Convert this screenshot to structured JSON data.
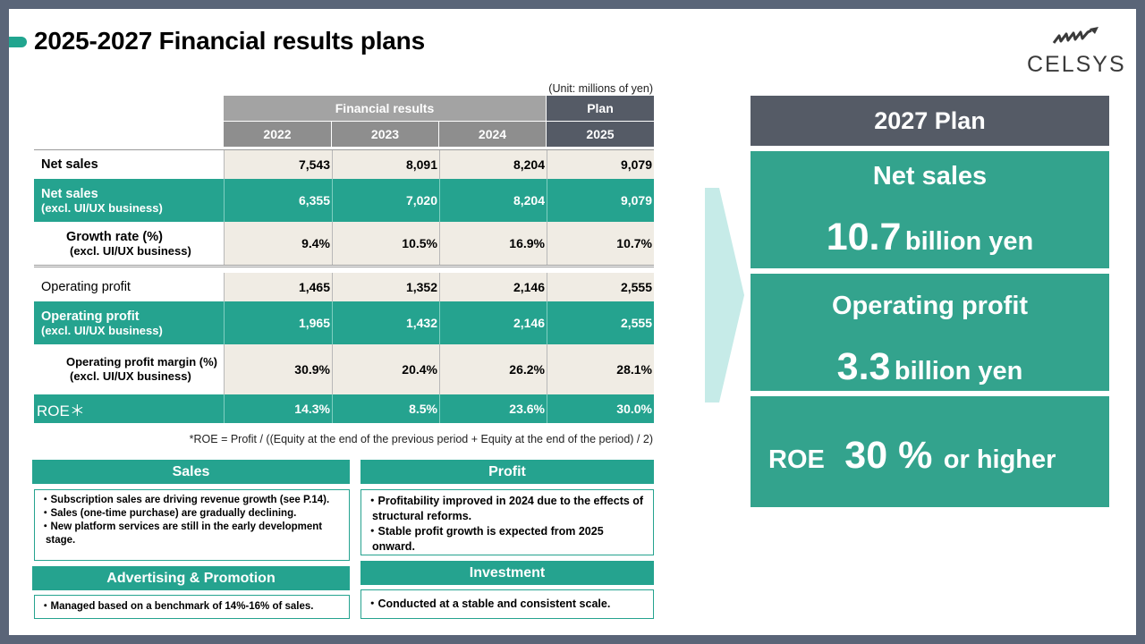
{
  "title": "2025-2027 Financial results plans",
  "logo_text": "CELSYS",
  "unit": "(Unit: millions of yen)",
  "table": {
    "group_results": "Financial results",
    "group_plan": "Plan",
    "years": [
      "2022",
      "2023",
      "2024",
      "2025"
    ],
    "rows": [
      {
        "label": "Net sales",
        "sub": "",
        "values": [
          "7,543",
          "8,091",
          "8,204",
          "9,079"
        ]
      },
      {
        "label": "Net sales",
        "sub": "(excl. UI/UX business)",
        "values": [
          "6,355",
          "7,020",
          "8,204",
          "9,079"
        ]
      },
      {
        "label": "Growth rate (%)",
        "sub": "(excl. UI/UX business)",
        "values": [
          "9.4%",
          "10.5%",
          "16.9%",
          "10.7%"
        ]
      },
      {
        "label": "Operating profit",
        "sub": "",
        "values": [
          "1,465",
          "1,352",
          "2,146",
          "2,555"
        ]
      },
      {
        "label": "Operating profit",
        "sub": "(excl. UI/UX business)",
        "values": [
          "1,965",
          "1,432",
          "2,146",
          "2,555"
        ]
      },
      {
        "label": "Operating profit margin (%)",
        "sub": "(excl. UI/UX business)",
        "values": [
          "30.9%",
          "20.4%",
          "26.2%",
          "28.1%"
        ]
      },
      {
        "label": "ROE＊",
        "sub": "",
        "values": [
          "14.3%",
          "8.5%",
          "23.6%",
          "30.0%"
        ]
      }
    ]
  },
  "roe_note": "*ROE = Profit / ((Equity at the end of the previous period + Equity at the end of the period) / 2)",
  "boxes": {
    "sales": {
      "title": "Sales",
      "items": [
        "・Subscription sales are driving revenue growth (see P.14).",
        "・Sales (one-time purchase) are gradually declining.",
        "・New platform services are still in the early development stage."
      ]
    },
    "profit": {
      "title": "Profit",
      "items": [
        "・Profitability improved in 2024 due to the effects of structural reforms.",
        "・Stable profit growth is expected from 2025 onward."
      ]
    },
    "advertising": {
      "title": "Advertising & Promotion",
      "items": [
        "・Managed based on a benchmark of 14%-16% of sales."
      ]
    },
    "investment": {
      "title": "Investment",
      "items": [
        "・Conducted at a stable and consistent scale."
      ]
    }
  },
  "plan": {
    "title": "2027 Plan",
    "net_sales_label": "Net sales",
    "net_sales_value": "10.7",
    "net_sales_unit": "billion yen",
    "op_label": "Operating profit",
    "op_value": "3.3",
    "op_unit": "billion yen",
    "roe_label": "ROE",
    "roe_value": "30 %",
    "roe_suffix": "or higher"
  },
  "colors": {
    "accent_green": "#25a38f",
    "dark_header": "#555b66",
    "grey_header": "#a3a3a3",
    "cell_bg": "#f0ece4",
    "arrow": "#c6ebe8"
  }
}
